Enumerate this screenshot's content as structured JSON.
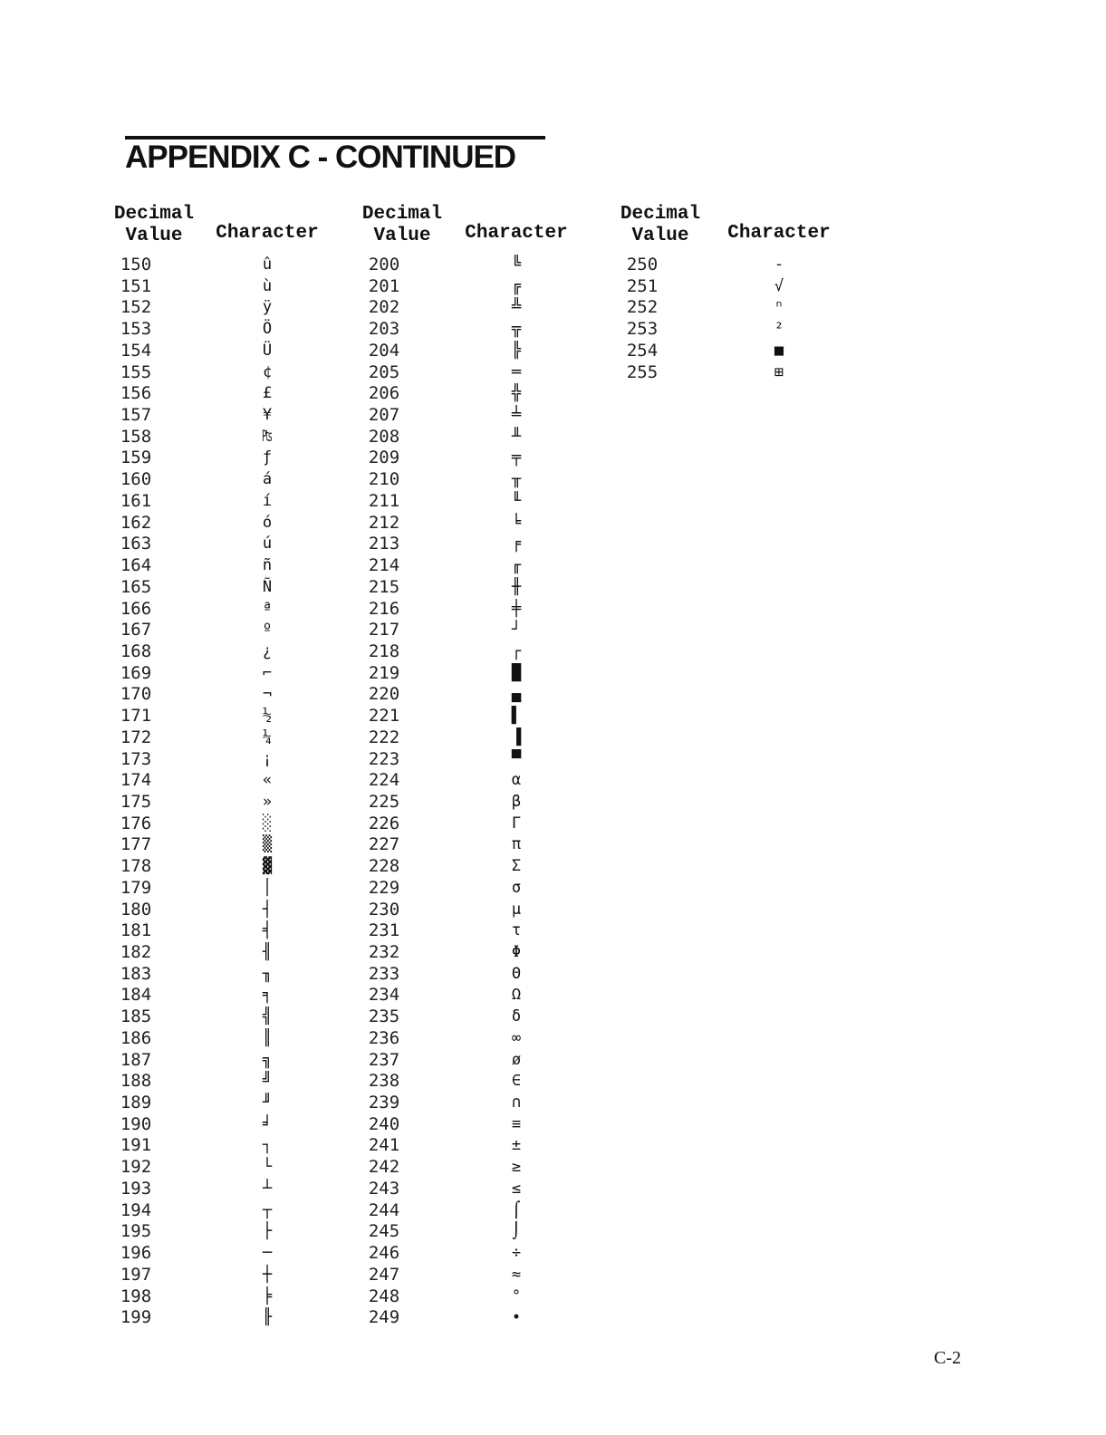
{
  "title": "APPENDIX C - CONTINUED",
  "header": {
    "decimal": "Decimal",
    "value": "Value",
    "character": "Character"
  },
  "columns": [
    {
      "rows": [
        [
          "150",
          "û"
        ],
        [
          "151",
          "ù"
        ],
        [
          "152",
          "ÿ"
        ],
        [
          "153",
          "Ö"
        ],
        [
          "154",
          "Ü"
        ],
        [
          "155",
          "¢"
        ],
        [
          "156",
          "£"
        ],
        [
          "157",
          "¥"
        ],
        [
          "158",
          "₧"
        ],
        [
          "159",
          "ƒ"
        ],
        [
          "160",
          "á"
        ],
        [
          "161",
          "í"
        ],
        [
          "162",
          "ó"
        ],
        [
          "163",
          "ú"
        ],
        [
          "164",
          "ñ"
        ],
        [
          "165",
          "Ñ"
        ],
        [
          "166",
          "ª"
        ],
        [
          "167",
          "º"
        ],
        [
          "168",
          "¿"
        ],
        [
          "169",
          "⌐"
        ],
        [
          "170",
          "¬"
        ],
        [
          "171",
          "½"
        ],
        [
          "172",
          "¼"
        ],
        [
          "173",
          "¡"
        ],
        [
          "174",
          "«"
        ],
        [
          "175",
          "»"
        ],
        [
          "176",
          "░"
        ],
        [
          "177",
          "▒"
        ],
        [
          "178",
          "▓"
        ],
        [
          "179",
          "│"
        ],
        [
          "180",
          "┤"
        ],
        [
          "181",
          "╡"
        ],
        [
          "182",
          "╢"
        ],
        [
          "183",
          "╖"
        ],
        [
          "184",
          "╕"
        ],
        [
          "185",
          "╣"
        ],
        [
          "186",
          "║"
        ],
        [
          "187",
          "╗"
        ],
        [
          "188",
          "╝"
        ],
        [
          "189",
          "╜"
        ],
        [
          "190",
          "╛"
        ],
        [
          "191",
          "┐"
        ],
        [
          "192",
          "└"
        ],
        [
          "193",
          "┴"
        ],
        [
          "194",
          "┬"
        ],
        [
          "195",
          "├"
        ],
        [
          "196",
          "─"
        ],
        [
          "197",
          "┼"
        ],
        [
          "198",
          "╞"
        ],
        [
          "199",
          "╟"
        ]
      ]
    },
    {
      "rows": [
        [
          "200",
          "╚"
        ],
        [
          "201",
          "╔"
        ],
        [
          "202",
          "╩"
        ],
        [
          "203",
          "╦"
        ],
        [
          "204",
          "╠"
        ],
        [
          "205",
          "═"
        ],
        [
          "206",
          "╬"
        ],
        [
          "207",
          "╧"
        ],
        [
          "208",
          "╨"
        ],
        [
          "209",
          "╤"
        ],
        [
          "210",
          "╥"
        ],
        [
          "211",
          "╙"
        ],
        [
          "212",
          "╘"
        ],
        [
          "213",
          "╒"
        ],
        [
          "214",
          "╓"
        ],
        [
          "215",
          "╫"
        ],
        [
          "216",
          "╪"
        ],
        [
          "217",
          "┘"
        ],
        [
          "218",
          "┌"
        ],
        [
          "219",
          "█"
        ],
        [
          "220",
          "▄"
        ],
        [
          "221",
          "▌"
        ],
        [
          "222",
          "▐"
        ],
        [
          "223",
          "▀"
        ],
        [
          "224",
          "α"
        ],
        [
          "225",
          "β"
        ],
        [
          "226",
          "Γ"
        ],
        [
          "227",
          "π"
        ],
        [
          "228",
          "Σ"
        ],
        [
          "229",
          "σ"
        ],
        [
          "230",
          "µ"
        ],
        [
          "231",
          "τ"
        ],
        [
          "232",
          "Φ"
        ],
        [
          "233",
          "Θ"
        ],
        [
          "234",
          "Ω"
        ],
        [
          "235",
          "δ"
        ],
        [
          "236",
          "∞"
        ],
        [
          "237",
          "ø"
        ],
        [
          "238",
          "∈"
        ],
        [
          "239",
          "∩"
        ],
        [
          "240",
          "≡"
        ],
        [
          "241",
          "±"
        ],
        [
          "242",
          "≥"
        ],
        [
          "243",
          "≤"
        ],
        [
          "244",
          "⌠"
        ],
        [
          "245",
          "⌡"
        ],
        [
          "246",
          "÷"
        ],
        [
          "247",
          "≈"
        ],
        [
          "248",
          "°"
        ],
        [
          "249",
          "∙"
        ]
      ]
    },
    {
      "rows": [
        [
          "250",
          "-"
        ],
        [
          "251",
          "√"
        ],
        [
          "252",
          "ⁿ"
        ],
        [
          "253",
          "²"
        ],
        [
          "254",
          "■"
        ],
        [
          "255",
          "⊞"
        ]
      ]
    }
  ],
  "footer": "C-2"
}
